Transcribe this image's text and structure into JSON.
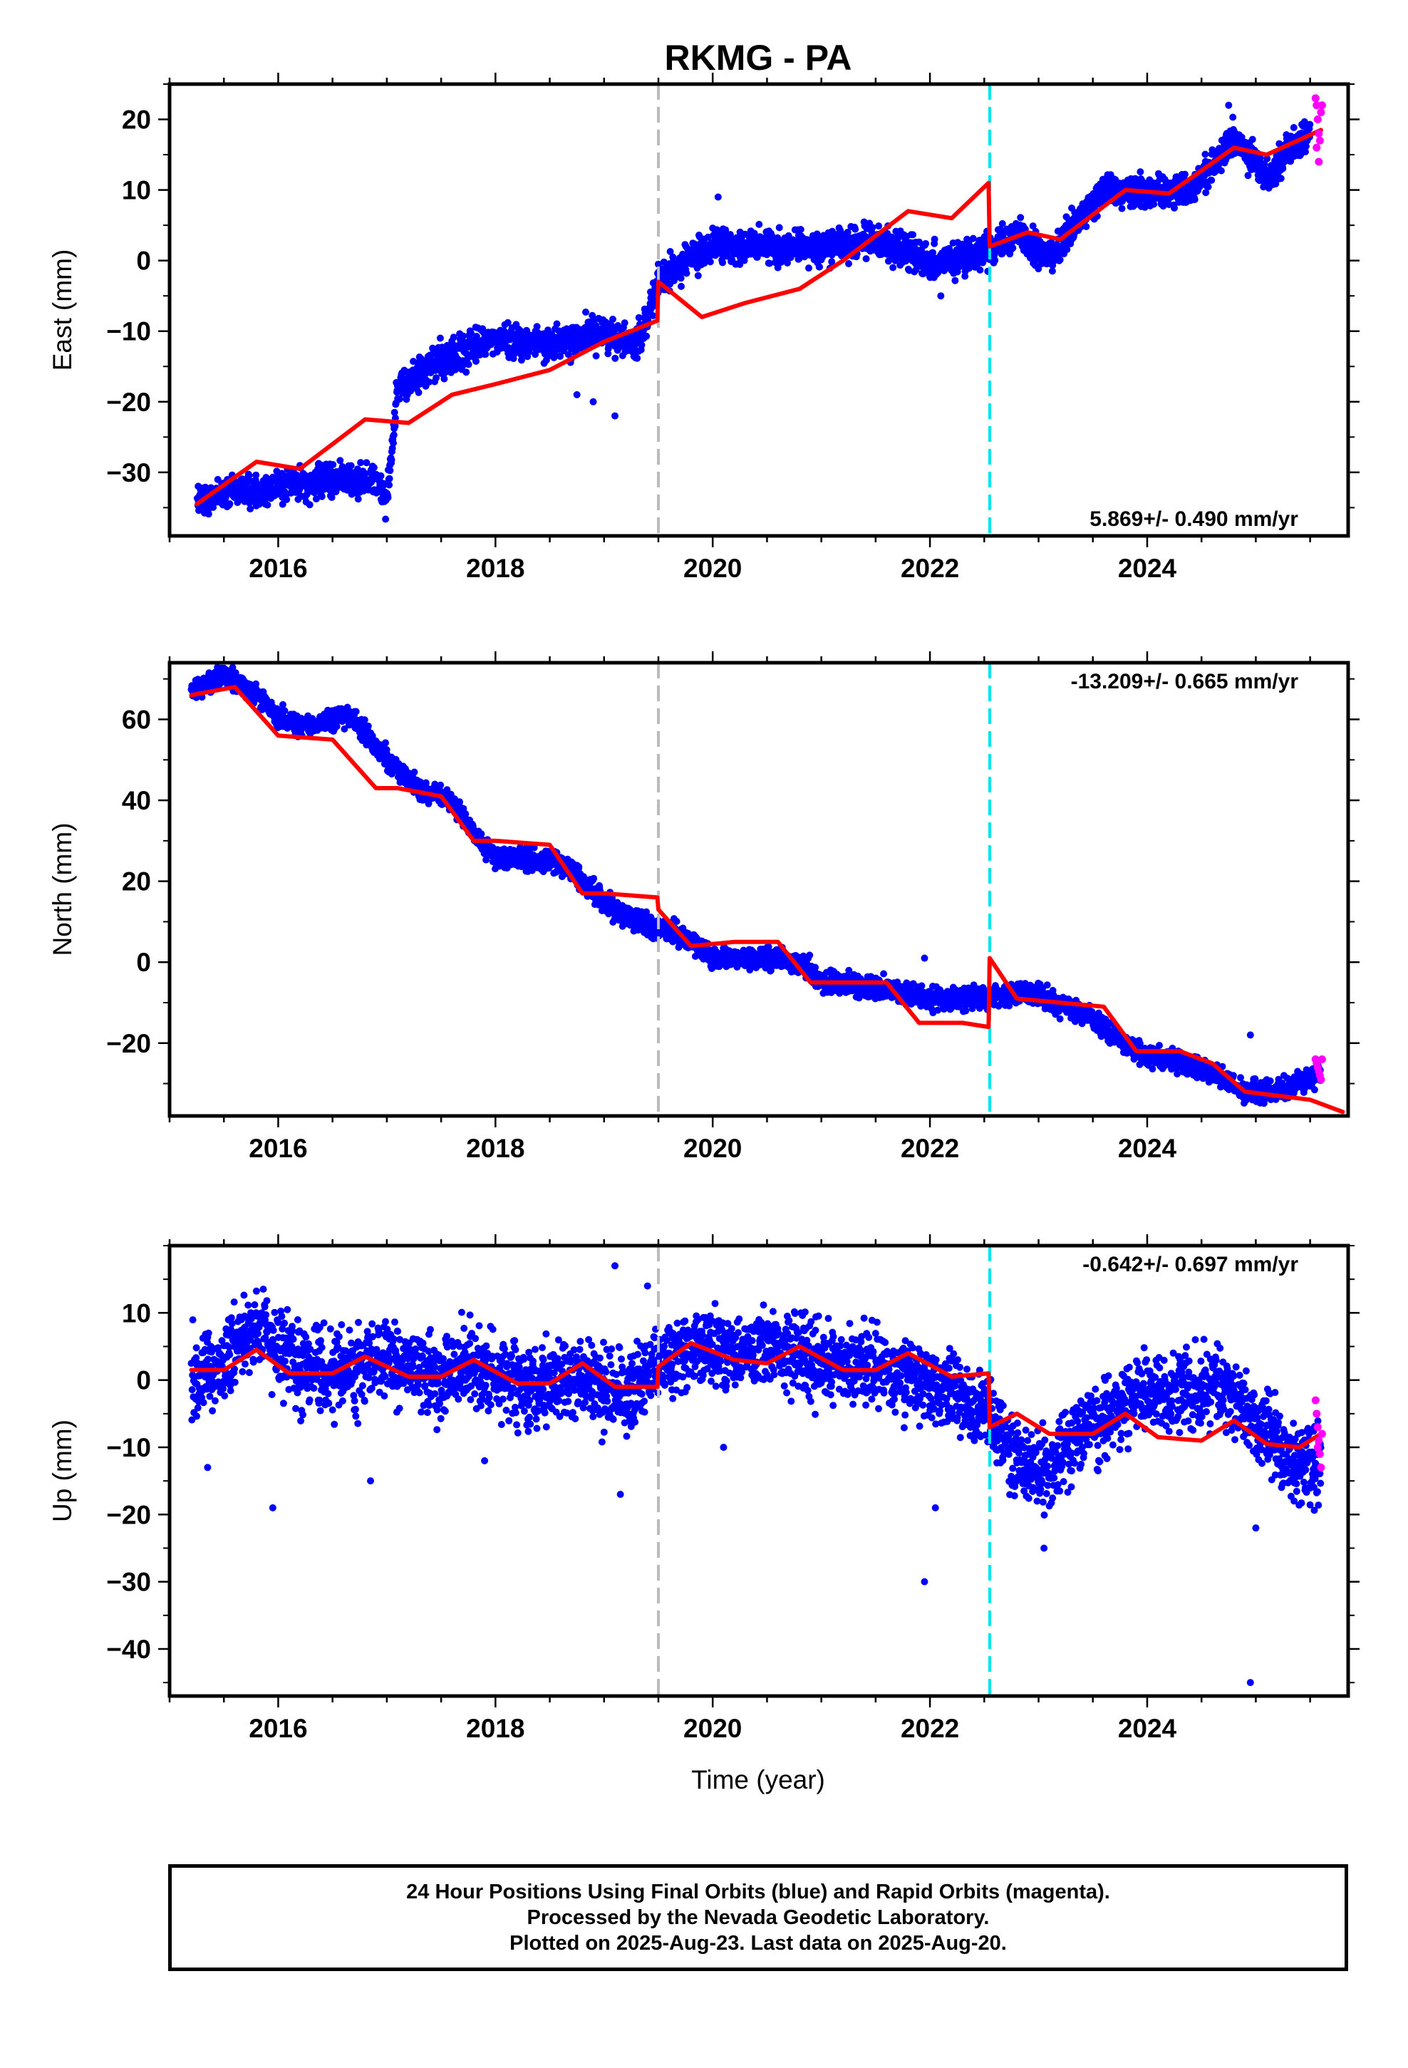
{
  "title": "RKMG - PA",
  "colors": {
    "final_orbits": "#0000ff",
    "rapid_orbits": "#ff00ff",
    "model": "#ff0000",
    "antenna_change": "#bbbbbb",
    "equipment_change": "#00e5ee"
  },
  "xlabel": "Time (year)",
  "caption": [
    "24 Hour Positions Using Final Orbits (blue) and Rapid Orbits (magenta).",
    "Processed by the Nevada Geodetic Laboratory.",
    "Plotted on 2025-Aug-23. Last data on 2025-Aug-20."
  ],
  "chart_data": [
    {
      "type": "scatter",
      "name": "east",
      "ylabel": "East (mm)",
      "rate_label": "5.869+/- 0.490 mm/yr",
      "rate_position": "bottom-right",
      "xlim": [
        2015.0,
        2025.85
      ],
      "ylim": [
        -39,
        25
      ],
      "xticks": [
        2016,
        2018,
        2020,
        2022,
        2024
      ],
      "xticklabels": [
        "2016",
        "2018",
        "2020",
        "2022",
        "2024"
      ],
      "yticks": [
        -30,
        -20,
        -10,
        0,
        10,
        20
      ],
      "yticklabels": [
        "−30",
        "−20",
        "−10",
        "0",
        "10",
        "20"
      ],
      "vlines": [
        {
          "x": 2019.5,
          "style": "antenna_change"
        },
        {
          "x": 2022.55,
          "style": "equipment_change"
        }
      ],
      "observed_trend": {
        "x": [
          2015.25,
          2015.6,
          2016.0,
          2016.5,
          2016.9,
          2017.0,
          2017.1,
          2017.5,
          2018.0,
          2018.5,
          2019.0,
          2019.3,
          2019.5,
          2019.75,
          2020.0,
          2020.5,
          2021.0,
          2021.5,
          2022.0,
          2022.3,
          2022.55,
          2022.8,
          2023.1,
          2023.6,
          2024.0,
          2024.4,
          2024.8,
          2025.1,
          2025.5
        ],
        "y": [
          -34,
          -33,
          -32,
          -31,
          -31,
          -34,
          -18,
          -14,
          -11,
          -12,
          -10,
          -12,
          -3,
          0,
          2,
          2,
          2,
          3,
          0,
          0,
          2,
          4,
          0,
          10,
          10,
          10,
          17,
          12,
          18
        ]
      },
      "observed_scatter_mm": 1.6,
      "outliers": {
        "x": [
          2018.75,
          2018.9,
          2019.1,
          2020.05,
          2020.6,
          2022.1,
          2024.75
        ],
        "y": [
          -19,
          -20,
          -22,
          9,
          -1,
          -5,
          22
        ]
      },
      "model": {
        "x": [
          2015.25,
          2015.8,
          2016.2,
          2016.8,
          2017.2,
          2017.6,
          2018.0,
          2018.5,
          2019.0,
          2019.49,
          2019.5,
          2019.9,
          2020.3,
          2020.8,
          2021.2,
          2021.8,
          2022.2,
          2022.54,
          2022.55,
          2022.9,
          2023.2,
          2023.8,
          2024.2,
          2024.8,
          2025.1,
          2025.6
        ],
        "y": [
          -34.5,
          -28.5,
          -29.5,
          -22.5,
          -23,
          -19,
          -17.5,
          -15.5,
          -11.5,
          -8.5,
          -3,
          -8,
          -6,
          -4,
          0,
          7,
          6,
          11,
          2,
          4,
          3,
          10,
          9.5,
          16,
          15,
          18.5
        ]
      },
      "rapid": {
        "x": [
          2025.55,
          2025.56,
          2025.57,
          2025.58,
          2025.59,
          2025.6,
          2025.61,
          2025.56,
          2025.58
        ],
        "y": [
          23,
          22,
          20,
          18,
          17,
          21,
          22,
          16,
          14
        ]
      }
    },
    {
      "type": "scatter",
      "name": "north",
      "ylabel": "North (mm)",
      "rate_label": "-13.209+/- 0.665 mm/yr",
      "rate_position": "top-right",
      "xlim": [
        2015.0,
        2025.85
      ],
      "ylim": [
        -38,
        74
      ],
      "xticks": [
        2016,
        2018,
        2020,
        2022,
        2024
      ],
      "xticklabels": [
        "2016",
        "2018",
        "2020",
        "2022",
        "2024"
      ],
      "yticks": [
        -20,
        0,
        20,
        40,
        60
      ],
      "yticklabels": [
        "−20",
        "0",
        "20",
        "40",
        "60"
      ],
      "vlines": [
        {
          "x": 2019.5,
          "style": "antenna_change"
        },
        {
          "x": 2022.55,
          "style": "equipment_change"
        }
      ],
      "observed_trend": {
        "x": [
          2015.2,
          2015.5,
          2015.8,
          2016.0,
          2016.3,
          2016.6,
          2016.8,
          2017.0,
          2017.3,
          2017.6,
          2017.8,
          2018.0,
          2018.5,
          2018.7,
          2019.0,
          2019.3,
          2019.5,
          2019.8,
          2020.0,
          2020.5,
          2020.8,
          2021.0,
          2021.5,
          2021.8,
          2022.0,
          2022.5,
          2022.7,
          2023.0,
          2023.5,
          2023.8,
          2024.0,
          2024.5,
          2024.9,
          2025.2,
          2025.6
        ],
        "y": [
          67,
          71,
          66,
          60,
          58,
          61,
          57,
          50,
          43,
          40,
          32,
          26,
          25,
          23,
          15,
          10,
          9,
          5,
          1,
          1,
          0,
          -5,
          -6,
          -8,
          -9,
          -9,
          -8,
          -8,
          -14,
          -20,
          -23,
          -26,
          -32,
          -32,
          -27
        ]
      },
      "observed_scatter_mm": 1.8,
      "outliers": {
        "x": [
          2021.95,
          2024.95
        ],
        "y": [
          1,
          -18
        ]
      },
      "model": {
        "x": [
          2015.2,
          2015.6,
          2016.0,
          2016.5,
          2016.9,
          2017.1,
          2017.5,
          2017.8,
          2018.0,
          2018.5,
          2018.8,
          2019.0,
          2019.49,
          2019.5,
          2019.8,
          2020.2,
          2020.6,
          2020.9,
          2021.3,
          2021.6,
          2021.9,
          2022.3,
          2022.54,
          2022.55,
          2022.8,
          2023.2,
          2023.6,
          2023.9,
          2024.3,
          2024.6,
          2024.9,
          2025.2,
          2025.5,
          2025.8
        ],
        "y": [
          66,
          68,
          56,
          55,
          43,
          43,
          41,
          30,
          30,
          29,
          17,
          17,
          16,
          13,
          4,
          5,
          5,
          -5,
          -5,
          -5,
          -15,
          -15,
          -16,
          1,
          -9,
          -10,
          -11,
          -22,
          -22,
          -25,
          -32,
          -33,
          -34,
          -37
        ]
      },
      "rapid": {
        "x": [
          2025.55,
          2025.56,
          2025.57,
          2025.58,
          2025.59,
          2025.6,
          2025.61
        ],
        "y": [
          -24,
          -25,
          -26,
          -27,
          -28,
          -29,
          -24
        ]
      }
    },
    {
      "type": "scatter",
      "name": "up",
      "ylabel": "Up (mm)",
      "rate_label": "-0.642+/- 0.697 mm/yr",
      "rate_position": "top-right",
      "xlim": [
        2015.0,
        2025.85
      ],
      "ylim": [
        -47,
        20
      ],
      "xticks": [
        2016,
        2018,
        2020,
        2022,
        2024
      ],
      "xticklabels": [
        "2016",
        "2018",
        "2020",
        "2022",
        "2024"
      ],
      "yticks": [
        -40,
        -30,
        -20,
        -10,
        0,
        10
      ],
      "yticklabels": [
        "−40",
        "−30",
        "−20",
        "−10",
        "0",
        "10"
      ],
      "vlines": [
        {
          "x": 2019.5,
          "style": "antenna_change"
        },
        {
          "x": 2022.55,
          "style": "equipment_change"
        }
      ],
      "observed_trend": {
        "x": [
          2015.2,
          2015.5,
          2015.8,
          2016.2,
          2016.6,
          2017.0,
          2017.4,
          2017.8,
          2018.3,
          2018.8,
          2019.2,
          2019.5,
          2019.8,
          2020.2,
          2020.6,
          2021.0,
          2021.5,
          2021.8,
          2022.2,
          2022.55,
          2022.8,
          2023.1,
          2023.5,
          2023.9,
          2024.3,
          2024.7,
          2025.0,
          2025.3,
          2025.6
        ],
        "y": [
          1,
          2,
          8,
          2,
          1,
          3,
          1,
          2,
          -1,
          0,
          -2,
          2,
          5,
          4,
          5,
          3,
          2,
          1,
          -2,
          -5,
          -12,
          -13,
          -6,
          -2,
          -2,
          -1,
          -6,
          -12,
          -14
        ]
      },
      "observed_scatter_mm": 4.0,
      "outliers": {
        "x": [
          2015.35,
          2015.95,
          2016.85,
          2017.9,
          2019.1,
          2019.15,
          2019.4,
          2020.1,
          2021.95,
          2022.05,
          2023.05,
          2024.95,
          2025.0
        ],
        "y": [
          -13,
          -19,
          -15,
          -12,
          17,
          -17,
          14,
          -10,
          -30,
          -19,
          -25,
          -45,
          -22
        ]
      },
      "model": {
        "x": [
          2015.2,
          2015.5,
          2015.8,
          2016.1,
          2016.5,
          2016.8,
          2017.2,
          2017.5,
          2017.8,
          2018.2,
          2018.5,
          2018.8,
          2019.1,
          2019.49,
          2019.5,
          2019.8,
          2020.2,
          2020.5,
          2020.8,
          2021.2,
          2021.5,
          2021.8,
          2022.2,
          2022.54,
          2022.55,
          2022.8,
          2023.1,
          2023.5,
          2023.8,
          2024.1,
          2024.5,
          2024.8,
          2025.1,
          2025.4,
          2025.6
        ],
        "y": [
          1.5,
          1.5,
          4.5,
          1.0,
          1.0,
          3.5,
          0.5,
          0.5,
          3.0,
          -0.5,
          -0.5,
          2.5,
          -1.0,
          -1.0,
          2.0,
          5.5,
          3.0,
          2.5,
          5.0,
          1.5,
          1.5,
          4.0,
          0.5,
          1.0,
          -7.0,
          -5.0,
          -8.0,
          -8.0,
          -5.0,
          -8.5,
          -9.0,
          -6.0,
          -9.5,
          -10.0,
          -8.0
        ]
      },
      "rapid": {
        "x": [
          2025.55,
          2025.56,
          2025.57,
          2025.58,
          2025.59,
          2025.6,
          2025.61,
          2025.57
        ],
        "y": [
          -3,
          -5,
          -7,
          -9,
          -11,
          -13,
          -8,
          -10
        ]
      }
    }
  ]
}
